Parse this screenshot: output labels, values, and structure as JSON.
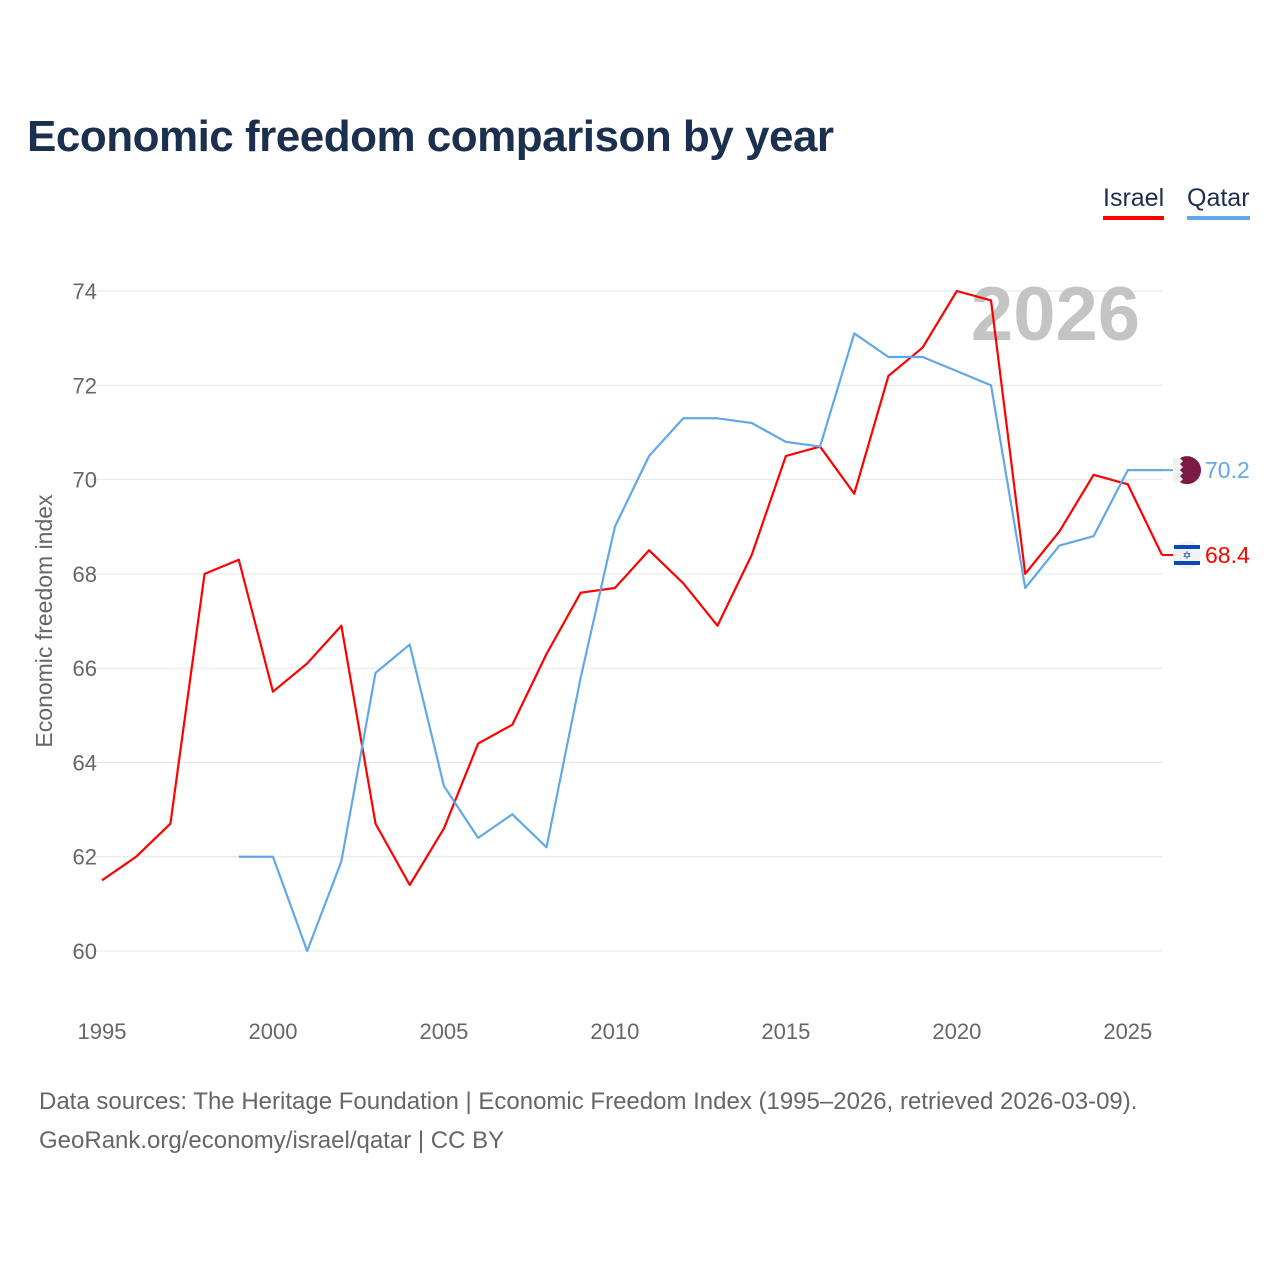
{
  "chart_data": {
    "type": "line",
    "title": "Economic freedom comparison by year",
    "xlabel": "",
    "ylabel": "Economic freedom index",
    "xlim": [
      1995,
      2026
    ],
    "ylim": [
      59,
      75
    ],
    "x_ticks": [
      "1995",
      "2000",
      "2005",
      "2010",
      "2015",
      "2020",
      "2025"
    ],
    "y_ticks": [
      "60",
      "62",
      "64",
      "66",
      "68",
      "70",
      "72",
      "74"
    ],
    "grid": true,
    "legend_position": "top-right",
    "year_watermark": "2026",
    "series": [
      {
        "name": "Israel",
        "color": "#ff0000",
        "flag": "israel-flag",
        "end_label": "68.4",
        "x": [
          1995,
          1996,
          1997,
          1998,
          1999,
          2000,
          2001,
          2002,
          2003,
          2004,
          2005,
          2006,
          2007,
          2008,
          2009,
          2010,
          2011,
          2012,
          2013,
          2014,
          2015,
          2016,
          2017,
          2018,
          2019,
          2020,
          2021,
          2022,
          2023,
          2024,
          2025,
          2026
        ],
        "values": [
          61.5,
          62.0,
          62.7,
          68.0,
          68.3,
          65.5,
          66.1,
          66.9,
          62.7,
          61.4,
          62.6,
          64.4,
          64.8,
          66.3,
          67.6,
          67.7,
          68.5,
          67.8,
          66.9,
          68.4,
          70.5,
          70.7,
          69.7,
          72.2,
          72.8,
          74.0,
          73.8,
          68.0,
          68.9,
          70.1,
          69.9,
          68.4
        ]
      },
      {
        "name": "Qatar",
        "color": "#62a8e8",
        "flag": "qatar-flag",
        "end_label": "70.2",
        "x": [
          1999,
          2000,
          2001,
          2002,
          2003,
          2004,
          2005,
          2006,
          2007,
          2008,
          2009,
          2010,
          2011,
          2012,
          2013,
          2014,
          2015,
          2016,
          2017,
          2018,
          2019,
          2020,
          2021,
          2022,
          2023,
          2024,
          2025,
          2026
        ],
        "values": [
          62.0,
          62.0,
          60.0,
          61.9,
          65.9,
          66.5,
          63.5,
          62.4,
          62.9,
          62.2,
          65.8,
          69.0,
          70.5,
          71.3,
          71.3,
          71.2,
          70.8,
          70.7,
          73.1,
          72.6,
          72.6,
          72.3,
          72.0,
          67.7,
          68.6,
          68.8,
          70.2,
          70.2
        ]
      }
    ]
  },
  "source_line1": "Data sources: The Heritage Foundation | Economic Freedom Index (1995–2026, retrieved 2026-03-09).",
  "source_line2": "GeoRank.org/economy/israel/qatar | CC BY"
}
